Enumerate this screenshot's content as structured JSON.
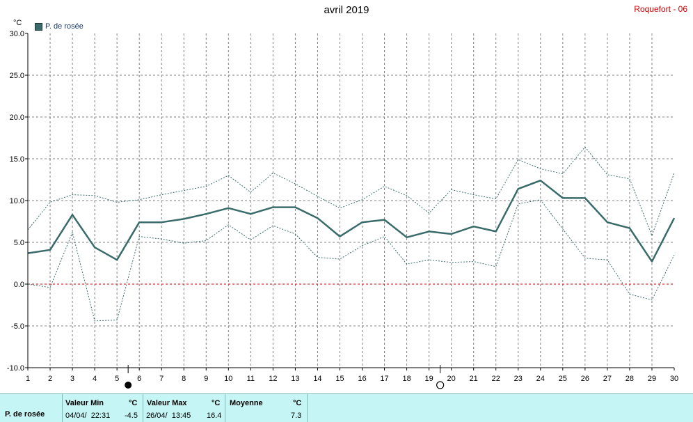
{
  "header": {
    "title": "avril 2019",
    "station": "Roquefort - 06",
    "unit": "°C",
    "legend_label": "P. de rosée"
  },
  "colors": {
    "series": "#3a6b6b",
    "envelope": "#3a6b6b",
    "zero_line": "#cc0000",
    "grid": "#808080",
    "stats_bg": "#c6f5f5"
  },
  "chart_data": {
    "type": "line",
    "title": "avril 2019",
    "ylabel": "°C",
    "x": [
      1,
      2,
      3,
      4,
      5,
      6,
      7,
      8,
      9,
      10,
      11,
      12,
      13,
      14,
      15,
      16,
      17,
      18,
      19,
      20,
      21,
      22,
      23,
      24,
      25,
      26,
      27,
      28,
      29,
      30
    ],
    "ylim": [
      -10.0,
      30.0
    ],
    "yticks": [
      "30.0",
      "25.0",
      "20.0",
      "15.0",
      "10.0",
      "5.0",
      "0.0",
      "-5.0",
      "-10.0"
    ],
    "xticks": [
      "1",
      "2",
      "3",
      "4",
      "5",
      "6",
      "7",
      "8",
      "9",
      "10",
      "11",
      "12",
      "13",
      "14",
      "15",
      "16",
      "17",
      "18",
      "19",
      "20",
      "21",
      "22",
      "23",
      "24",
      "25",
      "26",
      "27",
      "28",
      "29",
      "30"
    ],
    "series": [
      {
        "name": "P. de rosée",
        "role": "mean",
        "values": [
          3.7,
          4.1,
          8.3,
          4.4,
          2.9,
          7.4,
          7.4,
          7.8,
          8.4,
          9.1,
          8.4,
          9.2,
          9.2,
          7.9,
          5.7,
          7.4,
          7.7,
          5.6,
          6.3,
          6.0,
          6.9,
          6.3,
          11.4,
          12.4,
          10.3,
          10.3,
          7.4,
          6.7,
          2.7,
          7.9
        ]
      },
      {
        "role": "max",
        "values": [
          6.5,
          9.8,
          10.7,
          10.6,
          9.8,
          10.1,
          10.7,
          11.2,
          11.7,
          13.0,
          11.0,
          13.3,
          12.0,
          10.5,
          9.1,
          10.1,
          11.7,
          10.6,
          8.5,
          11.3,
          10.7,
          10.2,
          14.9,
          13.8,
          13.2,
          16.4,
          13.1,
          12.6,
          5.8,
          13.3
        ]
      },
      {
        "role": "min",
        "values": [
          0.0,
          -0.4,
          6.2,
          -4.4,
          -4.3,
          5.7,
          5.4,
          4.9,
          5.2,
          7.1,
          5.3,
          7.0,
          6.0,
          3.2,
          3.0,
          4.6,
          5.7,
          2.4,
          2.9,
          2.6,
          2.7,
          2.1,
          9.6,
          10.1,
          6.6,
          3.1,
          2.9,
          -1.2,
          -1.9,
          3.5
        ]
      }
    ],
    "grid": true,
    "reference_line": 0.0,
    "moon_phases": [
      {
        "day": 5.5,
        "phase": "new-moon"
      },
      {
        "day": 19.5,
        "phase": "full-moon"
      }
    ]
  },
  "stats": {
    "row_label": "P. de rosée",
    "min_header": "Valeur Min",
    "min_unit": "°C",
    "min_date": "04/04/  22:31",
    "min_value": "-4.5",
    "max_header": "Valeur Max",
    "max_unit": "°C",
    "max_date": "26/04/  13:45",
    "max_value": "16.4",
    "mean_header": "Moyenne",
    "mean_unit": "°C",
    "mean_value": "7.3"
  }
}
